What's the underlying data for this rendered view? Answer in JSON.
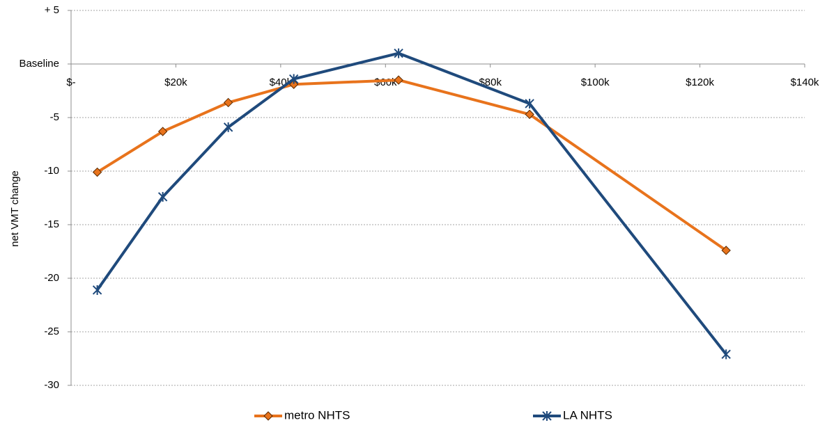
{
  "chart_data": {
    "type": "line",
    "y_label": "net VMT change",
    "x": [
      5000,
      17500,
      30000,
      42500,
      62500,
      87500,
      125000
    ],
    "series": [
      {
        "name": "metro NHTS",
        "color": "#e8731c",
        "marker": "diamond",
        "values": [
          -10.1,
          -6.3,
          -3.6,
          -1.9,
          -1.5,
          -4.7,
          -17.4
        ]
      },
      {
        "name": "LA NHTS",
        "color": "#1f4a7c",
        "marker": "asterisk",
        "values": [
          -21.1,
          -12.4,
          -5.9,
          -1.4,
          1.0,
          -3.7,
          -27.1
        ]
      }
    ],
    "xlim": [
      0,
      140000
    ],
    "xticks": [
      {
        "value": 0,
        "label": "$-"
      },
      {
        "value": 20000,
        "label": "$20k"
      },
      {
        "value": 40000,
        "label": "$40k"
      },
      {
        "value": 60000,
        "label": "$60k"
      },
      {
        "value": 80000,
        "label": "$80k"
      },
      {
        "value": 100000,
        "label": "$100k"
      },
      {
        "value": 120000,
        "label": "$120k"
      },
      {
        "value": 140000,
        "label": "$140k"
      }
    ],
    "ylim": [
      -30,
      5
    ],
    "yticks": [
      {
        "value": 5,
        "label": "+ 5"
      },
      {
        "value": 0,
        "label": "Baseline"
      },
      -5,
      -10,
      -15,
      -20,
      -25,
      -30
    ],
    "grid": true,
    "legend": "bottom"
  }
}
